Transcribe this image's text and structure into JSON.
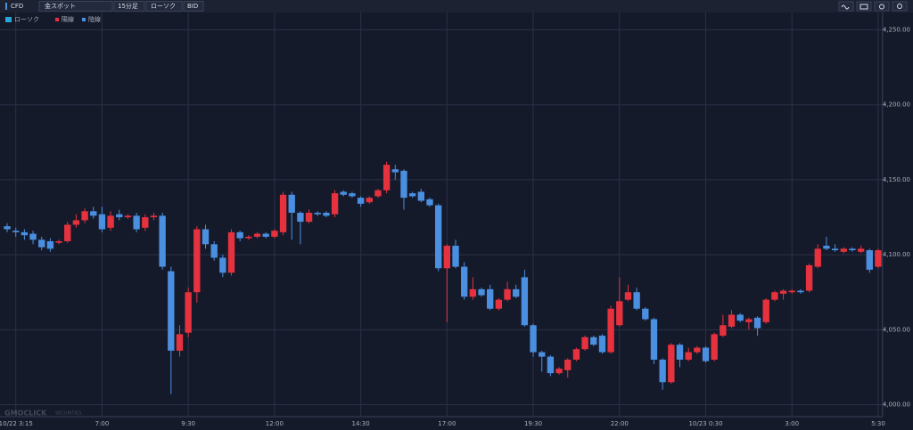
{
  "toolbar": {
    "market": "CFD",
    "symbol": "金スポット",
    "interval": "15分足",
    "chart_type": "ローソク",
    "price": "BID"
  },
  "chart_data": {
    "type": "candlestick",
    "legend": {
      "title": "ローソク",
      "up": "陽線",
      "down": "陰線"
    },
    "watermark": {
      "brand": "GMOCLICK",
      "sub": "SECURITIES"
    },
    "up_color": "#e5323e",
    "down_color": "#4a8fe0",
    "grid": true,
    "ylim": [
      3992,
      4261
    ],
    "yticks": [
      {
        "value": 4000,
        "label": "4,000.00"
      },
      {
        "value": 4050,
        "label": "4,050.00"
      },
      {
        "value": 4100,
        "label": "4,100.00"
      },
      {
        "value": 4150,
        "label": "4,150.00"
      },
      {
        "value": 4200,
        "label": "4,200.00"
      },
      {
        "value": 4250,
        "label": "4,250.00"
      }
    ],
    "categories": [
      null,
      "10/22 3:15",
      null,
      null,
      null,
      null,
      null,
      null,
      null,
      null,
      null,
      "7:00",
      null,
      null,
      null,
      null,
      null,
      null,
      null,
      null,
      null,
      "9:30",
      null,
      null,
      null,
      null,
      null,
      null,
      null,
      null,
      null,
      "12:00",
      null,
      null,
      null,
      null,
      null,
      null,
      null,
      null,
      null,
      "14:30",
      null,
      null,
      null,
      null,
      null,
      null,
      null,
      null,
      null,
      "17:00",
      null,
      null,
      null,
      null,
      null,
      null,
      null,
      null,
      null,
      "19:30",
      null,
      null,
      null,
      null,
      null,
      null,
      null,
      null,
      null,
      "22:00",
      null,
      null,
      null,
      null,
      null,
      null,
      null,
      null,
      null,
      "10/23 0:30",
      null,
      null,
      null,
      null,
      null,
      null,
      null,
      null,
      null,
      "3:00",
      null,
      null,
      null,
      null,
      null,
      null,
      null,
      null,
      null,
      "5:30"
    ],
    "open": [
      4119,
      4116,
      4115,
      4114,
      4110,
      4109,
      4108,
      4109,
      4120,
      4123,
      4129,
      4127,
      4118,
      4127,
      4125,
      4126,
      4118,
      4125,
      4126,
      4089,
      4036,
      4048,
      4075,
      4117,
      4107,
      4098,
      4088,
      4115,
      4111,
      4112,
      4114,
      4112,
      4115,
      4140,
      4128,
      4122,
      4128,
      4128,
      4127,
      4142,
      4141,
      4138,
      4135,
      4139,
      4143,
      4157,
      4156,
      4141,
      4142,
      4137,
      4133,
      4091,
      4106,
      4092,
      4072,
      4077,
      4077,
      4064,
      4070,
      4077,
      4085,
      4053,
      4035,
      4032,
      4021,
      4023,
      4030,
      4037,
      4045,
      4046,
      4035,
      4053,
      4070,
      4075,
      4064,
      4057,
      4030,
      4015,
      4040,
      4030,
      4035,
      4038,
      4030,
      4046,
      4052,
      4060,
      4055,
      4058,
      4055,
      4070,
      4074,
      4075,
      4076,
      4076,
      4092,
      4106,
      4104,
      4102,
      4104,
      4102,
      4103,
      4092
    ],
    "high": [
      4121,
      4118,
      4117,
      4116,
      4112,
      4111,
      4110,
      4122,
      4127,
      4131,
      4132,
      4132,
      4129,
      4130,
      4127,
      4128,
      4127,
      4128,
      4128,
      4092,
      4053,
      4078,
      4119,
      4120,
      4109,
      4100,
      4117,
      4116,
      4113,
      4115,
      4115,
      4117,
      4142,
      4142,
      4129,
      4130,
      4129,
      4129,
      4143,
      4143,
      4142,
      4139,
      4139,
      4144,
      4162,
      4160,
      4157,
      4142,
      4144,
      4138,
      4134,
      4107,
      4110,
      4095,
      4085,
      4078,
      4080,
      4071,
      4082,
      4080,
      4090,
      4054,
      4036,
      4033,
      4025,
      4031,
      4038,
      4046,
      4046,
      4047,
      4066,
      4085,
      4080,
      4078,
      4065,
      4058,
      4031,
      4041,
      4041,
      4038,
      4039,
      4039,
      4048,
      4060,
      4063,
      4061,
      4058,
      4059,
      4071,
      4076,
      4077,
      4077,
      4077,
      4094,
      4107,
      4112,
      4107,
      4105,
      4105,
      4106,
      4104,
      4104
    ],
    "low": [
      4115,
      4112,
      4110,
      4107,
      4103,
      4102,
      4107,
      4108,
      4118,
      4121,
      4124,
      4115,
      4116,
      4123,
      4124,
      4115,
      4116,
      4123,
      4090,
      4007,
      4032,
      4045,
      4068,
      4104,
      4096,
      4085,
      4086,
      4109,
      4110,
      4111,
      4111,
      4111,
      4113,
      4110,
      4107,
      4121,
      4126,
      4125,
      4125,
      4139,
      4138,
      4132,
      4134,
      4138,
      4141,
      4150,
      4130,
      4138,
      4135,
      4132,
      4089,
      4055,
      4091,
      4070,
      4070,
      4072,
      4063,
      4063,
      4069,
      4071,
      4052,
      4032,
      4022,
      4019,
      4020,
      4018,
      4029,
      4036,
      4039,
      4034,
      4034,
      4052,
      4069,
      4063,
      4056,
      4027,
      4010,
      4014,
      4025,
      4029,
      4034,
      4028,
      4029,
      4045,
      4051,
      4055,
      4050,
      4046,
      4054,
      4069,
      4070,
      4074,
      4074,
      4075,
      4091,
      4103,
      4102,
      4101,
      4102,
      4101,
      4088,
      4091
    ],
    "close": [
      4117,
      4115,
      4113,
      4110,
      4105,
      4104,
      4109,
      4120,
      4123,
      4129,
      4126,
      4117,
      4126,
      4125,
      4126,
      4117,
      4125,
      4126,
      4092,
      4036,
      4047,
      4075,
      4117,
      4107,
      4098,
      4088,
      4115,
      4111,
      4112,
      4114,
      4112,
      4116,
      4140,
      4128,
      4122,
      4128,
      4127,
      4126,
      4141,
      4140,
      4139,
      4134,
      4138,
      4143,
      4160,
      4155,
      4138,
      4139,
      4136,
      4133,
      4091,
      4106,
      4092,
      4072,
      4077,
      4073,
      4064,
      4070,
      4077,
      4072,
      4053,
      4035,
      4032,
      4021,
      4024,
      4030,
      4037,
      4045,
      4040,
      4035,
      4064,
      4069,
      4075,
      4064,
      4057,
      4030,
      4015,
      4040,
      4030,
      4035,
      4038,
      4029,
      4047,
      4053,
      4060,
      4056,
      4057,
      4051,
      4070,
      4075,
      4076,
      4076,
      4075,
      4093,
      4104,
      4104,
      4103,
      4104,
      4103,
      4104,
      4090,
      4103
    ]
  }
}
